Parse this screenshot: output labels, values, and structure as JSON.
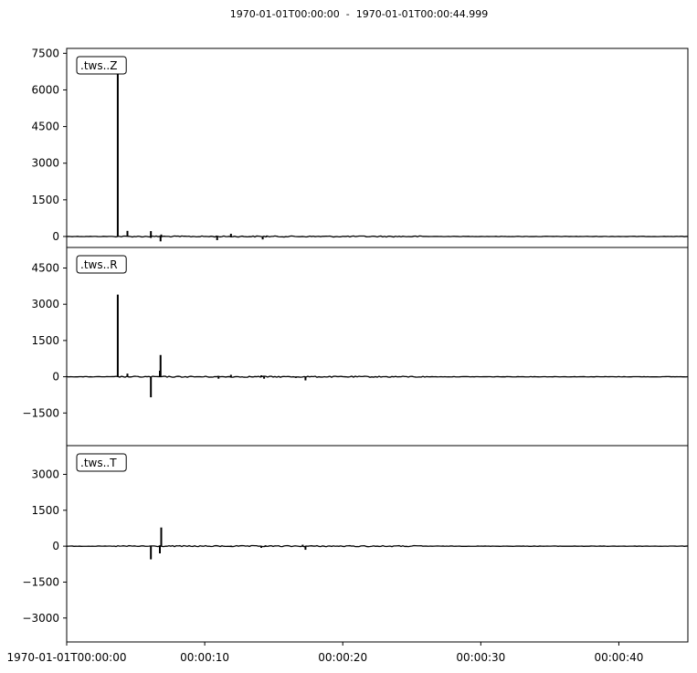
{
  "title": "1970-01-01T00:00:00  -  1970-01-01T00:00:44.999",
  "chart_data": [
    {
      "type": "line",
      "trace_label": ".tws..Z",
      "ylim": [
        -450,
        7700
      ],
      "yticks": [
        0,
        1500,
        3000,
        4500,
        6000,
        7500
      ],
      "ytick_labels": [
        "0",
        "1500",
        "3000",
        "4500",
        "6000",
        "7500"
      ],
      "events": [
        {
          "t": 3.7,
          "v": 7300
        },
        {
          "t": 4.4,
          "v": 230
        },
        {
          "t": 6.1,
          "v": 220
        },
        {
          "t": 6.1,
          "v": -60
        },
        {
          "t": 6.8,
          "v": -200
        },
        {
          "t": 6.85,
          "v": 80
        },
        {
          "t": 10.9,
          "v": -150
        },
        {
          "t": 11.9,
          "v": 110
        },
        {
          "t": 14.2,
          "v": -120
        },
        {
          "t": 14.5,
          "v": 40
        },
        {
          "t": 15.2,
          "v": 30
        },
        {
          "t": 21.5,
          "v": 15
        }
      ]
    },
    {
      "type": "line",
      "trace_label": ".tws..R",
      "ylim": [
        -2850,
        5350
      ],
      "yticks": [
        -1500,
        0,
        1500,
        3000,
        4500
      ],
      "ytick_labels": [
        "−1500",
        "0",
        "1500",
        "3000",
        "4500"
      ],
      "events": [
        {
          "t": 3.7,
          "v": 3400
        },
        {
          "t": 4.4,
          "v": 130
        },
        {
          "t": 6.1,
          "v": -850
        },
        {
          "t": 6.8,
          "v": 900
        },
        {
          "t": 6.75,
          "v": 250
        },
        {
          "t": 11.0,
          "v": -80
        },
        {
          "t": 11.9,
          "v": 80
        },
        {
          "t": 14.1,
          "v": 60
        },
        {
          "t": 14.3,
          "v": -80
        },
        {
          "t": 16.6,
          "v": -50
        },
        {
          "t": 17.3,
          "v": -150
        },
        {
          "t": 19.9,
          "v": 30
        },
        {
          "t": 27.7,
          "v": -15
        }
      ]
    },
    {
      "type": "line",
      "trace_label": ".tws..T",
      "ylim": [
        -4000,
        4200
      ],
      "yticks": [
        -3000,
        -1500,
        0,
        1500,
        3000
      ],
      "ytick_labels": [
        "−3000",
        "−1500",
        "0",
        "1500",
        "3000"
      ],
      "events": [
        {
          "t": 6.1,
          "v": -550
        },
        {
          "t": 6.75,
          "v": -300
        },
        {
          "t": 6.85,
          "v": 780
        },
        {
          "t": 9.1,
          "v": -25
        },
        {
          "t": 11.9,
          "v": 25
        },
        {
          "t": 14.1,
          "v": -70
        },
        {
          "t": 14.4,
          "v": 40
        },
        {
          "t": 17.1,
          "v": 60
        },
        {
          "t": 17.3,
          "v": -150
        },
        {
          "t": 19.9,
          "v": 20
        },
        {
          "t": 27.7,
          "v": -15
        }
      ]
    }
  ],
  "x_axis": {
    "range_seconds": [
      0,
      45
    ],
    "ticks": [
      0,
      10,
      20,
      30,
      40
    ],
    "tick_labels": [
      "1970-01-01T00:00:00",
      "00:00:10",
      "00:00:20",
      "00:00:30",
      "00:00:40"
    ]
  },
  "colors": {
    "trace": "#000000",
    "axes": "#000000",
    "background": "#ffffff"
  }
}
